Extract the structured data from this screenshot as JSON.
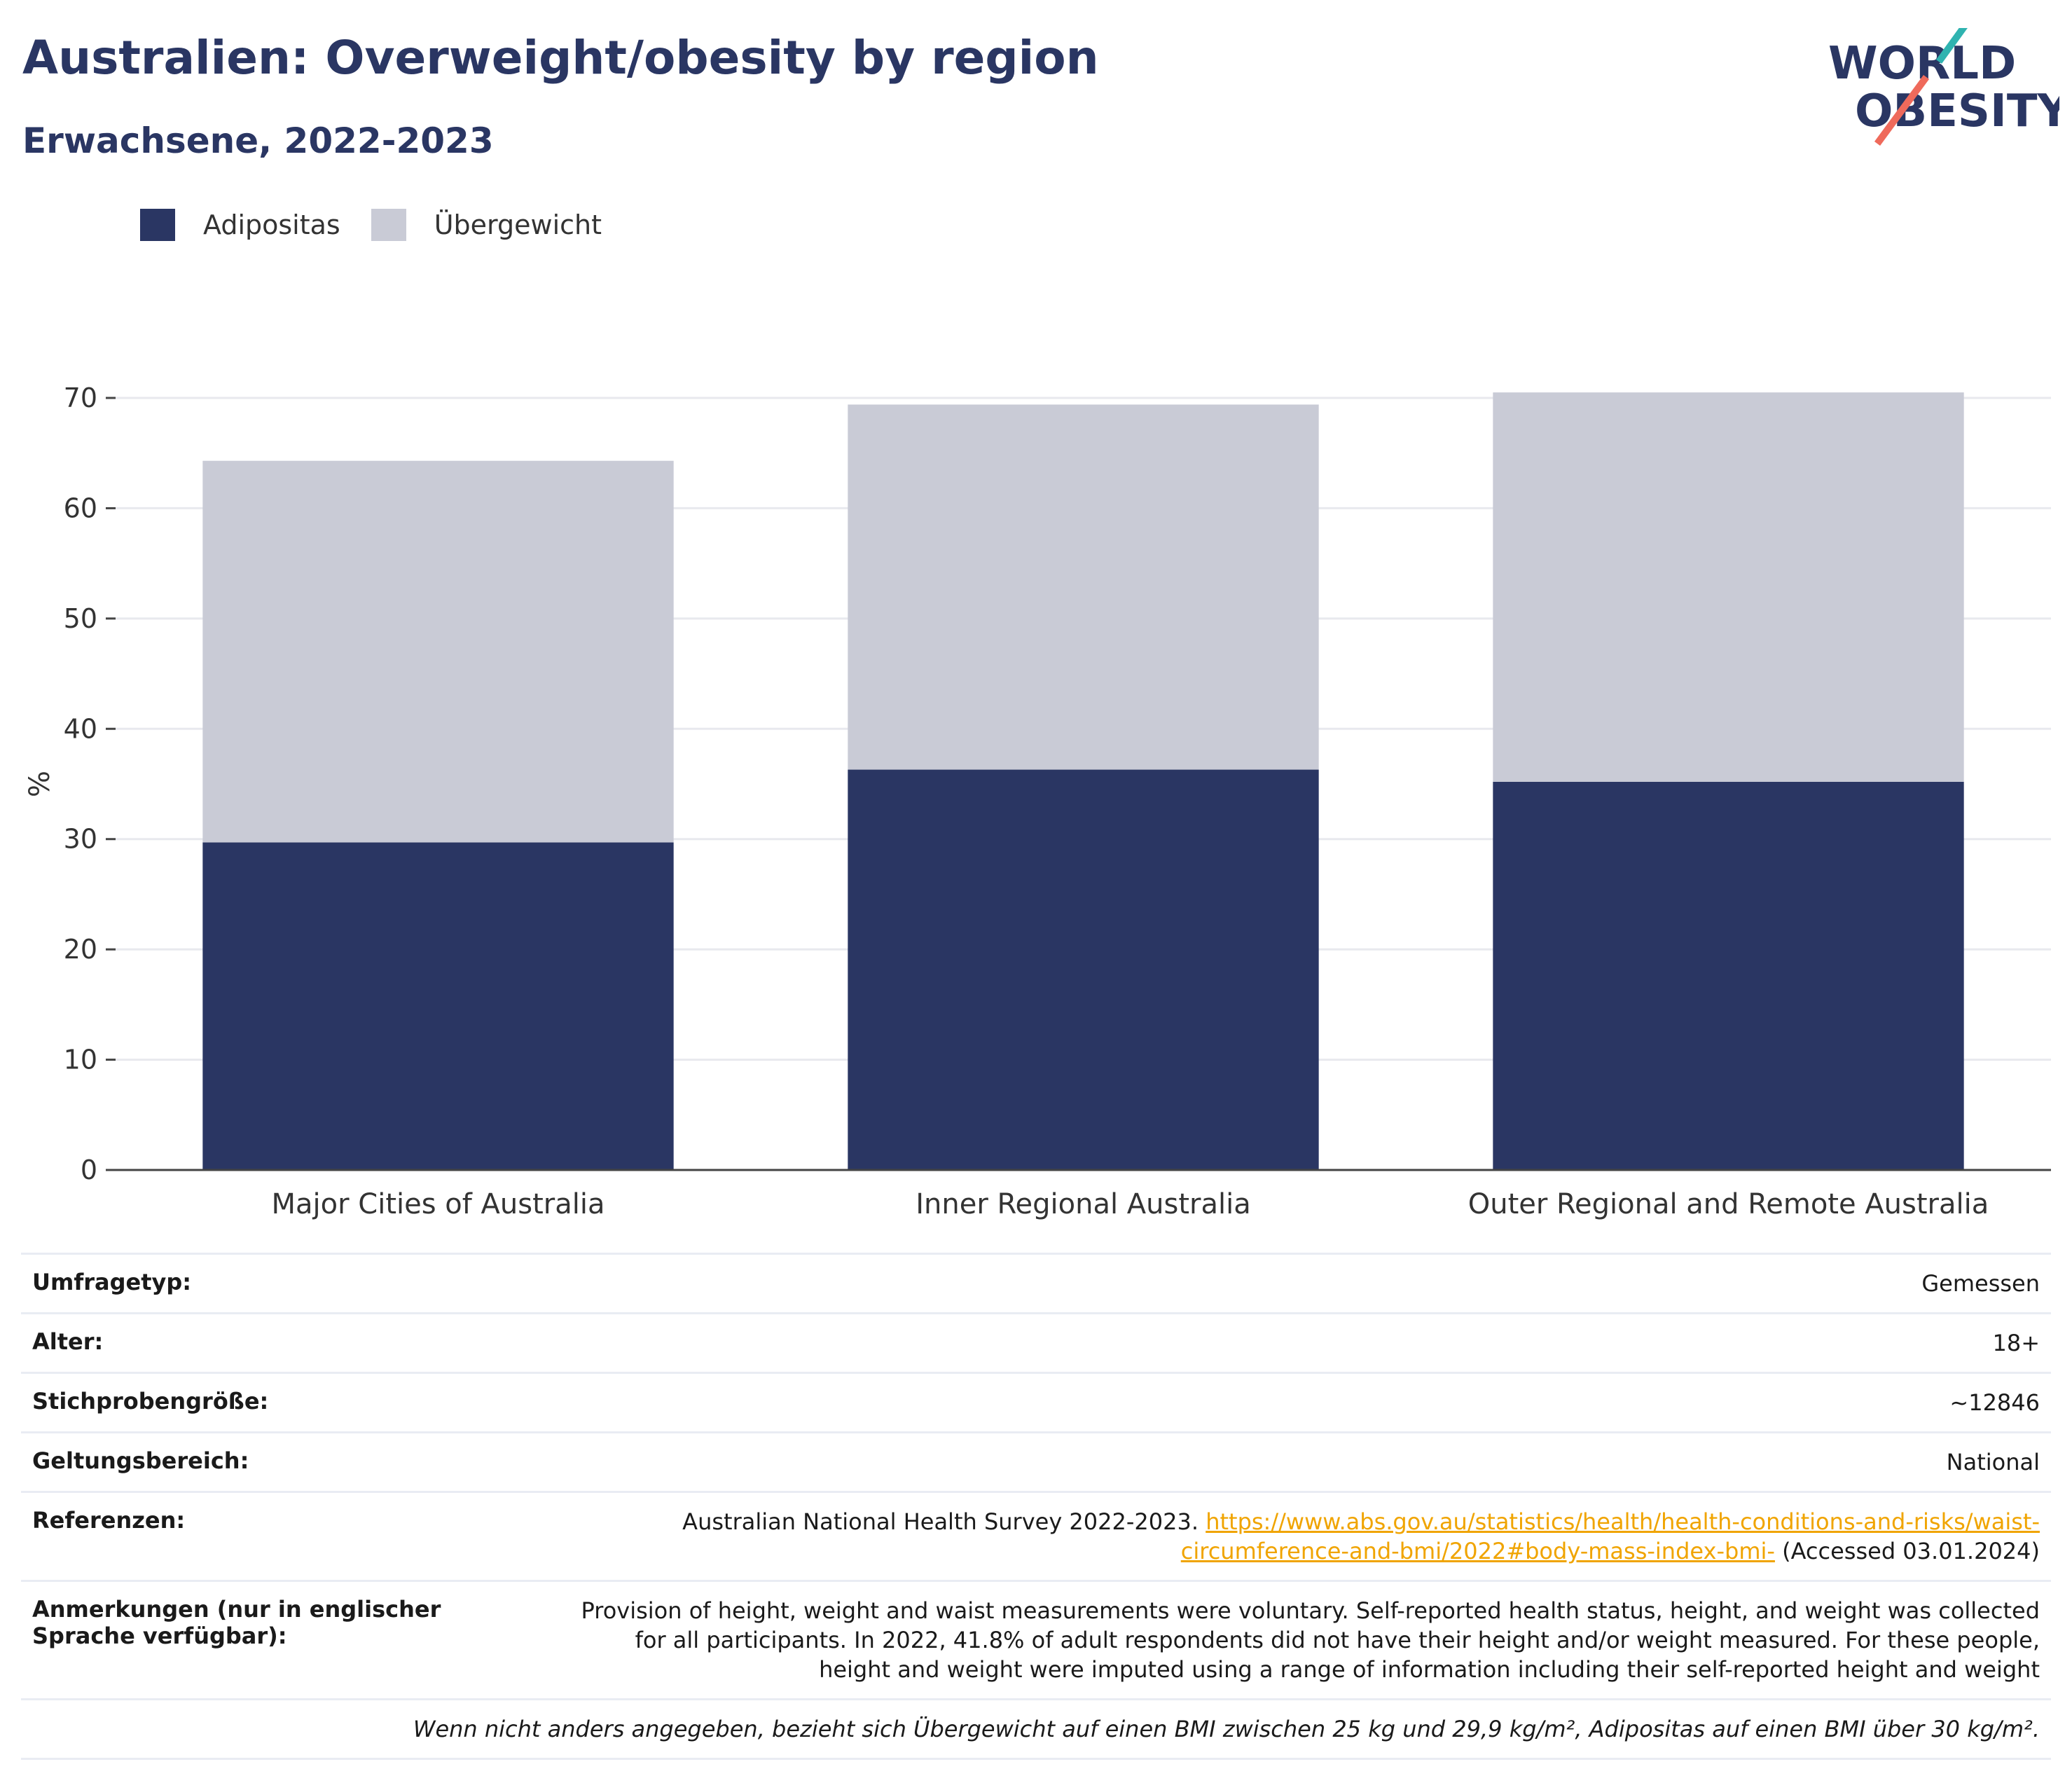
{
  "header": {
    "title": "Australien: Overweight/obesity by region",
    "subtitle": "Erwachsene, 2022-2023",
    "logo_line1": "WORLD",
    "logo_line2": "OBESITY"
  },
  "legend": [
    {
      "label": "Adipositas",
      "color": "#2a3663"
    },
    {
      "label": "Übergewicht",
      "color": "#c9cbd6"
    }
  ],
  "chart_data": {
    "type": "bar",
    "stacked": true,
    "categories": [
      "Major Cities of Australia",
      "Inner Regional Australia",
      "Outer Regional and Remote Australia"
    ],
    "series": [
      {
        "name": "Adipositas",
        "values": [
          29.7,
          36.3,
          35.2
        ],
        "color": "#2a3663"
      },
      {
        "name": "Übergewicht",
        "values": [
          34.6,
          33.1,
          35.3
        ],
        "color": "#c9cbd6"
      }
    ],
    "ylabel": "%",
    "ylim": [
      0,
      70
    ],
    "yticks": [
      0,
      10,
      20,
      30,
      40,
      50,
      60,
      70
    ],
    "grid": true,
    "legend_position": "top-left"
  },
  "info": {
    "survey_type": {
      "label": "Umfragetyp:",
      "value": "Gemessen"
    },
    "age": {
      "label": "Alter:",
      "value": "18+"
    },
    "sample_size": {
      "label": "Stichprobengröße:",
      "value": "~12846"
    },
    "scope": {
      "label": "Geltungsbereich:",
      "value": "National"
    },
    "references": {
      "label": "Referenzen:",
      "text": "Australian National Health Survey 2022-2023.",
      "link_line1": "https://www.abs.gov.au/statistics/health/health-conditions-and-risks/waist-",
      "link_line2": "circumference-and-bmi/2022#body-mass-index-bmi-",
      "accessed": "(Accessed 03.01.2024)"
    },
    "notes": {
      "label": "Anmerkungen (nur in englischer Sprache verfügbar):",
      "value": "Provision of height, weight and waist measurements were voluntary. Self-reported health status, height, and weight was collected for all participants. In 2022, 41.8% of adult respondents did not have their height and/or weight measured. For these people, height and weight were imputed using a range of information including their self-reported height and weight"
    },
    "footnote": "Wenn nicht anders angegeben, bezieht sich Übergewicht auf einen BMI zwischen 25 kg und 29,9 kg/m², Adipositas auf einen BMI über 30 kg/m²."
  }
}
